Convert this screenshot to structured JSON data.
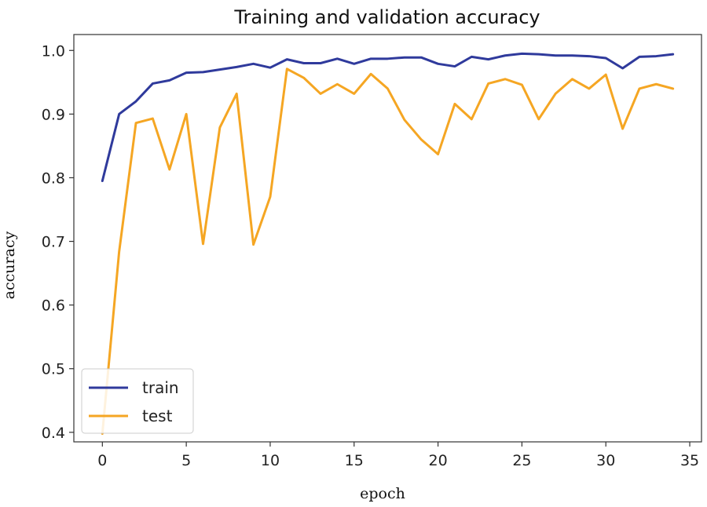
{
  "chart_data": {
    "type": "line",
    "title": "Training and validation accuracy",
    "xlabel": "epoch",
    "ylabel": "accuracy",
    "xlim": [
      -1.7,
      35.7
    ],
    "ylim": [
      0.385,
      1.025
    ],
    "xticks": [
      0,
      5,
      10,
      15,
      20,
      25,
      30,
      35
    ],
    "yticks": [
      0.4,
      0.5,
      0.6,
      0.7,
      0.8,
      0.9,
      1.0
    ],
    "ytick_labels": [
      "0.4",
      "0.5",
      "0.6",
      "0.7",
      "0.8",
      "0.9",
      "1.0"
    ],
    "grid": false,
    "legend_position": "lower-left",
    "x": [
      0,
      1,
      2,
      3,
      4,
      5,
      6,
      7,
      8,
      9,
      10,
      11,
      12,
      13,
      14,
      15,
      16,
      17,
      18,
      19,
      20,
      21,
      22,
      23,
      24,
      25,
      26,
      27,
      28,
      29,
      30,
      31,
      32,
      33,
      34
    ],
    "series": [
      {
        "name": "train",
        "color": "#2f3a9c",
        "values": [
          0.795,
          0.9,
          0.92,
          0.948,
          0.953,
          0.965,
          0.966,
          0.97,
          0.974,
          0.979,
          0.973,
          0.986,
          0.98,
          0.98,
          0.987,
          0.979,
          0.987,
          0.987,
          0.989,
          0.989,
          0.979,
          0.975,
          0.99,
          0.986,
          0.992,
          0.995,
          0.994,
          0.992,
          0.992,
          0.991,
          0.988,
          0.972,
          0.99,
          0.991,
          0.994
        ]
      },
      {
        "name": "test",
        "color": "#f5a623",
        "values": [
          0.398,
          0.684,
          0.886,
          0.893,
          0.813,
          0.9,
          0.696,
          0.879,
          0.932,
          0.695,
          0.77,
          0.971,
          0.957,
          0.932,
          0.947,
          0.932,
          0.963,
          0.94,
          0.891,
          0.86,
          0.837,
          0.916,
          0.892,
          0.948,
          0.955,
          0.946,
          0.892,
          0.932,
          0.955,
          0.94,
          0.962,
          0.877,
          0.94,
          0.947,
          0.94
        ]
      }
    ]
  }
}
